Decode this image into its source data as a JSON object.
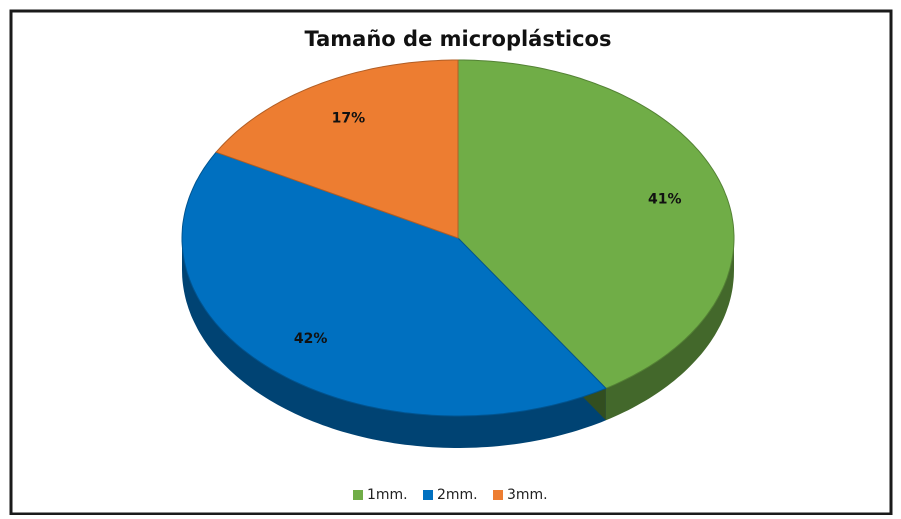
{
  "chart_data": {
    "type": "pie",
    "title": "Tamaño de microplásticos",
    "categories": [
      "1mm.",
      "2mm.",
      "3mm."
    ],
    "values": [
      41,
      42,
      17
    ],
    "value_labels": [
      "41%",
      "42%",
      "17%"
    ],
    "colors": [
      "#70ad47",
      "#0070c0",
      "#ed7d31"
    ],
    "legend": "bottom"
  }
}
